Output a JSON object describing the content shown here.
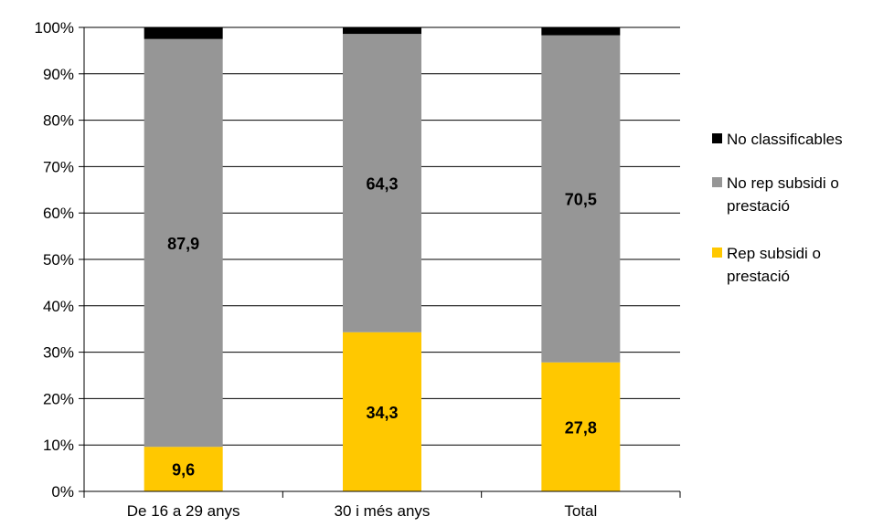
{
  "chart_data": {
    "type": "bar",
    "stacked": true,
    "percent": true,
    "categories": [
      "De 16 a 29 anys",
      "30 i més anys",
      "Total"
    ],
    "series": [
      {
        "name": "Rep subsidi o prestació",
        "color": "#FFC800",
        "values": [
          9.6,
          34.3,
          27.8
        ],
        "labels": [
          "9,6",
          "34,3",
          "27,8"
        ]
      },
      {
        "name": "No rep subsidi o prestació",
        "color": "#969696",
        "values": [
          87.9,
          64.3,
          70.5
        ],
        "labels": [
          "87,9",
          "64,3",
          "70,5"
        ]
      },
      {
        "name": "No classificables",
        "color": "#000000",
        "values": [
          2.5,
          1.4,
          1.7
        ],
        "labels": [
          "",
          "",
          ""
        ]
      }
    ],
    "legend_order": [
      2,
      1,
      0
    ],
    "legend_lines": [
      [
        "No classificables"
      ],
      [
        "No rep subsidi o",
        "prestació"
      ],
      [
        "Rep subsidi o",
        "prestació"
      ]
    ],
    "ylim": [
      0,
      100
    ],
    "yticks": [
      "0%",
      "10%",
      "20%",
      "30%",
      "40%",
      "50%",
      "60%",
      "70%",
      "80%",
      "90%",
      "100%"
    ],
    "grid": true,
    "legend_position": "right"
  }
}
